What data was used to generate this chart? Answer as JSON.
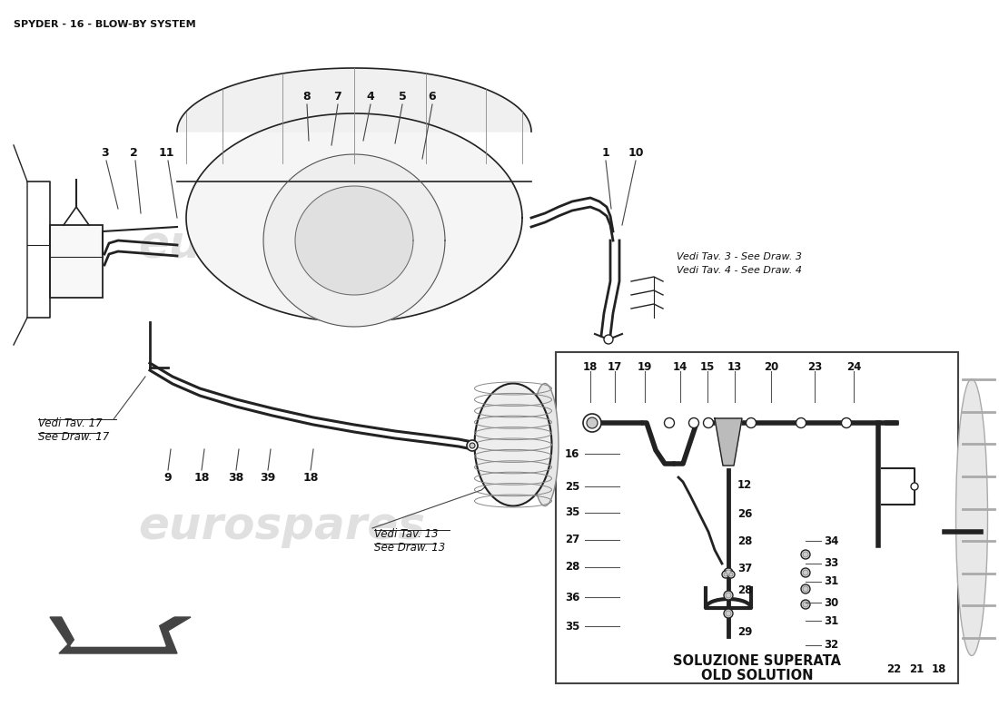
{
  "title": "SPYDER - 16 - BLOW-BY SYSTEM",
  "title_fontsize": 8,
  "bg_color": "#ffffff",
  "text_color": "#111111",
  "fig_width": 11.0,
  "fig_height": 8.0,
  "watermark": "eurospares",
  "ref_3": "Vedi Tav. 3 - See Draw. 3",
  "ref_4": "Vedi Tav. 4 - See Draw. 4",
  "ref_17_1": "Vedi Tav. 17",
  "ref_17_2": "See Draw. 17",
  "ref_13_1": "Vedi Tav. 13",
  "ref_13_2": "See Draw. 13",
  "caption1": "SOLUZIONE SUPERATA",
  "caption2": "OLD SOLUTION"
}
